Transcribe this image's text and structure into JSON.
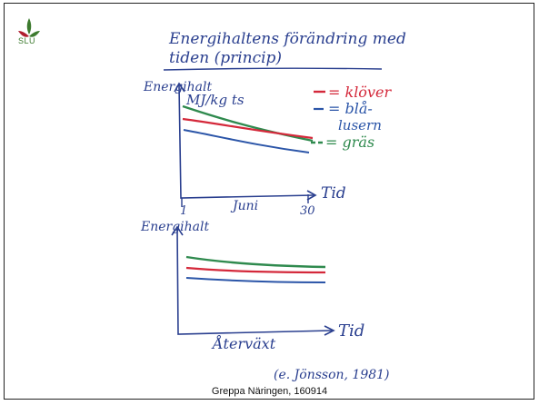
{
  "title": {
    "line1": "Energihaltens förändring med",
    "line2": "tiden (princip)"
  },
  "logo": {
    "text": "SLU"
  },
  "chart_top": {
    "ylabel": "Energihalt",
    "yunit": "MJ/kg ts",
    "xlabel": "Tid",
    "x_tick_start": "1",
    "x_tick_end": "30",
    "x_mid_label": "Juni",
    "legend": [
      {
        "label": "= klöver",
        "color": "#d4283a"
      },
      {
        "label": "= blå-",
        "color": "#2b55a8"
      },
      {
        "label": "lusern",
        "color": "#2b55a8"
      },
      {
        "label": "= gräs",
        "color": "#2f8a4e"
      }
    ]
  },
  "chart_bottom": {
    "ylabel": "Energihalt",
    "xlabel": "Tid",
    "x_mid_label": "Återväxt"
  },
  "source": "(e. Jönsson, 1981)",
  "footer": "Greppa Näringen, 160914",
  "colors": {
    "red": "#d4283a",
    "blue": "#2b55a8",
    "green": "#2f8a4e",
    "ink": "#2a3f8f"
  }
}
